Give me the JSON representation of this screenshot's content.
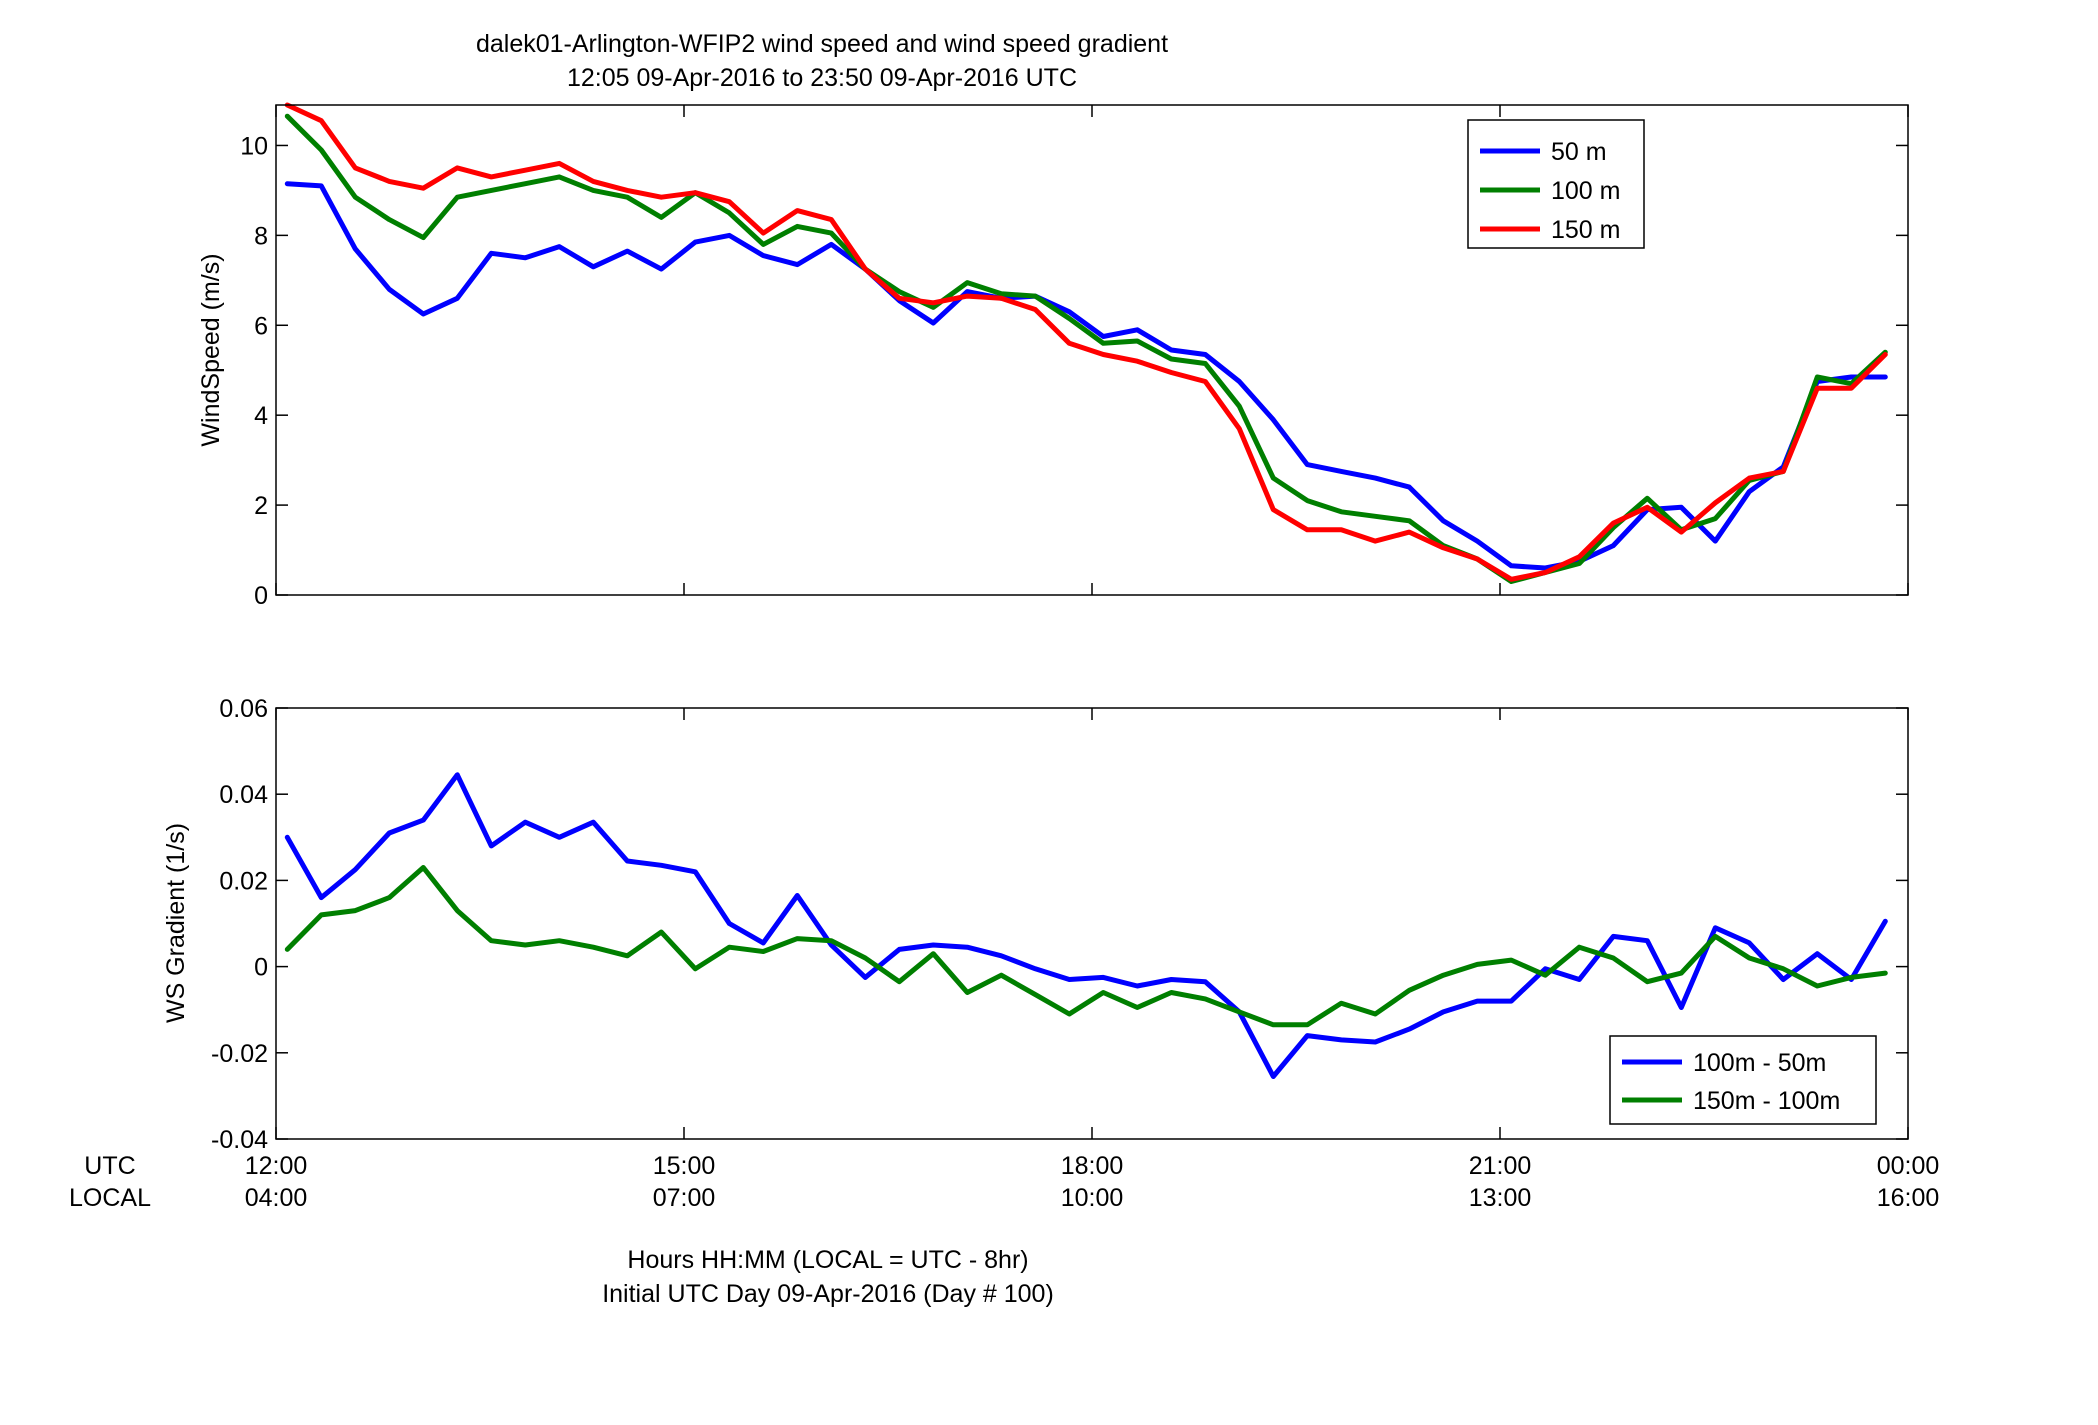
{
  "title": {
    "line1": "dalek01-Arlington-WFIP2  wind speed and wind speed gradient",
    "line2": "12:05 09-Apr-2016 to 23:50 09-Apr-2016  UTC"
  },
  "xaxis": {
    "row1_name": "UTC",
    "row2_name": "LOCAL",
    "utc_ticks": [
      "12:00",
      "15:00",
      "18:00",
      "21:00",
      "00:00"
    ],
    "local_ticks": [
      "04:00",
      "07:00",
      "10:00",
      "13:00",
      "16:00"
    ],
    "label_line1": "Hours HH:MM  (LOCAL = UTC - 8hr)",
    "label_line2": "Initial UTC Day 09-Apr-2016 (Day # 100)"
  },
  "chart_data": [
    {
      "type": "line",
      "ylabel": "WindSpeed (m/s)",
      "xlim": [
        12.0,
        24.0
      ],
      "ylim": [
        0,
        10.9
      ],
      "yticks": [
        0,
        2,
        4,
        6,
        8,
        10
      ],
      "ytick_labels": [
        "0",
        "2",
        "4",
        "6",
        "8",
        "10"
      ],
      "grid": false,
      "legend_position": "top-right",
      "x_hours_utc": [
        12.083,
        12.333,
        12.583,
        12.833,
        13.083,
        13.333,
        13.583,
        13.833,
        14.083,
        14.333,
        14.583,
        14.833,
        15.083,
        15.333,
        15.583,
        15.833,
        16.083,
        16.333,
        16.583,
        16.833,
        17.083,
        17.333,
        17.583,
        17.833,
        18.083,
        18.333,
        18.583,
        18.833,
        19.083,
        19.333,
        19.583,
        19.833,
        20.083,
        20.333,
        20.583,
        20.833,
        21.083,
        21.333,
        21.583,
        21.833,
        22.083,
        22.333,
        22.583,
        22.833,
        23.083,
        23.333,
        23.583,
        23.833
      ],
      "series": [
        {
          "name": "50 m",
          "color": "#0000ff",
          "values": [
            9.15,
            9.1,
            7.7,
            6.8,
            6.25,
            6.6,
            7.6,
            7.5,
            7.75,
            7.3,
            7.65,
            7.25,
            7.85,
            8.0,
            7.55,
            7.35,
            7.8,
            7.25,
            6.55,
            6.05,
            6.75,
            6.6,
            6.65,
            6.3,
            5.75,
            5.9,
            5.45,
            5.35,
            4.75,
            3.9,
            2.9,
            2.75,
            2.6,
            2.4,
            1.65,
            1.2,
            0.65,
            0.6,
            0.75,
            1.1,
            1.9,
            1.95,
            1.2,
            2.3,
            2.85,
            4.75,
            4.85,
            4.85
          ]
        },
        {
          "name": "100 m",
          "color": "#007f00",
          "values": [
            10.65,
            9.9,
            8.85,
            8.35,
            7.95,
            8.85,
            9.0,
            9.15,
            9.3,
            9.0,
            8.85,
            8.4,
            8.95,
            8.5,
            7.8,
            8.2,
            8.05,
            7.25,
            6.75,
            6.4,
            6.95,
            6.7,
            6.65,
            6.15,
            5.6,
            5.65,
            5.25,
            5.15,
            4.2,
            2.6,
            2.1,
            1.85,
            1.75,
            1.65,
            1.1,
            0.8,
            0.3,
            0.5,
            0.7,
            1.5,
            2.15,
            1.45,
            1.7,
            2.55,
            2.75,
            4.85,
            4.7,
            5.4
          ]
        },
        {
          "name": "150 m",
          "color": "#ff0000",
          "values": [
            10.9,
            10.55,
            9.5,
            9.2,
            9.05,
            9.5,
            9.3,
            9.45,
            9.6,
            9.2,
            9.0,
            8.85,
            8.95,
            8.75,
            8.05,
            8.55,
            8.35,
            7.25,
            6.6,
            6.5,
            6.65,
            6.6,
            6.35,
            5.6,
            5.35,
            5.2,
            4.95,
            4.75,
            3.7,
            1.9,
            1.45,
            1.45,
            1.2,
            1.4,
            1.05,
            0.8,
            0.35,
            0.5,
            0.85,
            1.6,
            1.95,
            1.4,
            2.05,
            2.6,
            2.75,
            4.6,
            4.6,
            5.35
          ]
        }
      ]
    },
    {
      "type": "line",
      "ylabel": "WS Gradient (1/s)",
      "xlim": [
        12.0,
        24.0
      ],
      "ylim": [
        -0.04,
        0.06
      ],
      "yticks": [
        -0.04,
        -0.02,
        0,
        0.02,
        0.04,
        0.06
      ],
      "ytick_labels": [
        "-0.04",
        "-0.02",
        "0",
        "0.02",
        "0.04",
        "0.06"
      ],
      "grid": false,
      "legend_position": "bottom-right",
      "x_hours_utc": [
        12.083,
        12.333,
        12.583,
        12.833,
        13.083,
        13.333,
        13.583,
        13.833,
        14.083,
        14.333,
        14.583,
        14.833,
        15.083,
        15.333,
        15.583,
        15.833,
        16.083,
        16.333,
        16.583,
        16.833,
        17.083,
        17.333,
        17.583,
        17.833,
        18.083,
        18.333,
        18.583,
        18.833,
        19.083,
        19.333,
        19.583,
        19.833,
        20.083,
        20.333,
        20.583,
        20.833,
        21.083,
        21.333,
        21.583,
        21.833,
        22.083,
        22.333,
        22.583,
        22.833,
        23.083,
        23.333,
        23.583,
        23.833
      ],
      "series": [
        {
          "name": "100m - 50m",
          "color": "#0000ff",
          "values": [
            0.03,
            0.016,
            0.0225,
            0.031,
            0.034,
            0.0445,
            0.028,
            0.0335,
            0.03,
            0.0335,
            0.0245,
            0.0235,
            0.022,
            0.01,
            0.0055,
            0.0165,
            0.005,
            -0.0025,
            0.004,
            0.005,
            0.0045,
            0.0025,
            -0.0005,
            -0.003,
            -0.0025,
            -0.0045,
            -0.003,
            -0.0035,
            -0.0105,
            -0.0255,
            -0.016,
            -0.017,
            -0.0175,
            -0.0145,
            -0.0105,
            -0.008,
            -0.008,
            -0.0005,
            -0.003,
            0.007,
            0.006,
            -0.0095,
            0.009,
            0.0055,
            -0.003,
            0.003,
            -0.003,
            0.0105
          ]
        },
        {
          "name": "150m - 100m",
          "color": "#007f00",
          "values": [
            0.004,
            0.012,
            0.013,
            0.016,
            0.023,
            0.013,
            0.006,
            0.005,
            0.006,
            0.0045,
            0.0025,
            0.008,
            -0.0005,
            0.0045,
            0.0035,
            0.0065,
            0.006,
            0.002,
            -0.0035,
            0.003,
            -0.006,
            -0.002,
            -0.0065,
            -0.011,
            -0.006,
            -0.0095,
            -0.006,
            -0.0075,
            -0.0105,
            -0.0135,
            -0.0135,
            -0.0085,
            -0.011,
            -0.0055,
            -0.002,
            0.0005,
            0.0015,
            -0.002,
            0.0045,
            0.002,
            -0.0035,
            -0.0015,
            0.007,
            0.002,
            -0.0005,
            -0.0045,
            -0.0025,
            -0.0015
          ]
        }
      ]
    }
  ]
}
